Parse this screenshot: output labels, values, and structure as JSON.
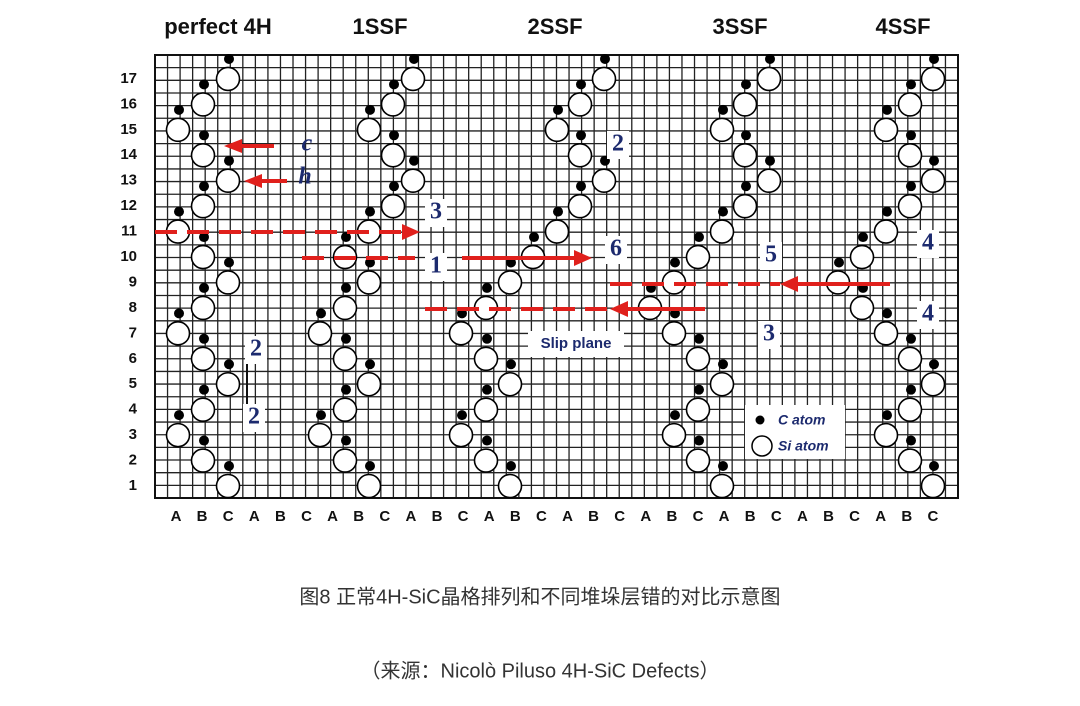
{
  "headings": [
    "perfect 4H",
    "1SSF",
    "2SSF",
    "3SSF",
    "4SSF"
  ],
  "row_labels": [
    "1",
    "2",
    "3",
    "4",
    "5",
    "6",
    "7",
    "8",
    "9",
    "10",
    "11",
    "12",
    "13",
    "14",
    "15",
    "16",
    "17"
  ],
  "column_labels": [
    "A",
    "B",
    "C",
    "A",
    "B",
    "C",
    "A",
    "B",
    "C",
    "A",
    "B",
    "C",
    "A",
    "B",
    "C",
    "A",
    "B",
    "C",
    "A",
    "B",
    "C",
    "A",
    "B",
    "C",
    "A",
    "B",
    "C",
    "A",
    "B",
    "C"
  ],
  "annotations": [
    "c",
    "h",
    "3",
    "1",
    "6",
    "2",
    "5",
    "3",
    "4",
    "4",
    "2",
    "2"
  ],
  "slip_plane": "Slip plane",
  "legend": {
    "c_atom": "C atom",
    "si_atom": "Si atom"
  },
  "caption": "图8  正常4H-SiC晶格排列和不同堆垛层错的对比示意图",
  "source": "（来源：Nicolò Piluso 4H-SiC Defects）"
}
